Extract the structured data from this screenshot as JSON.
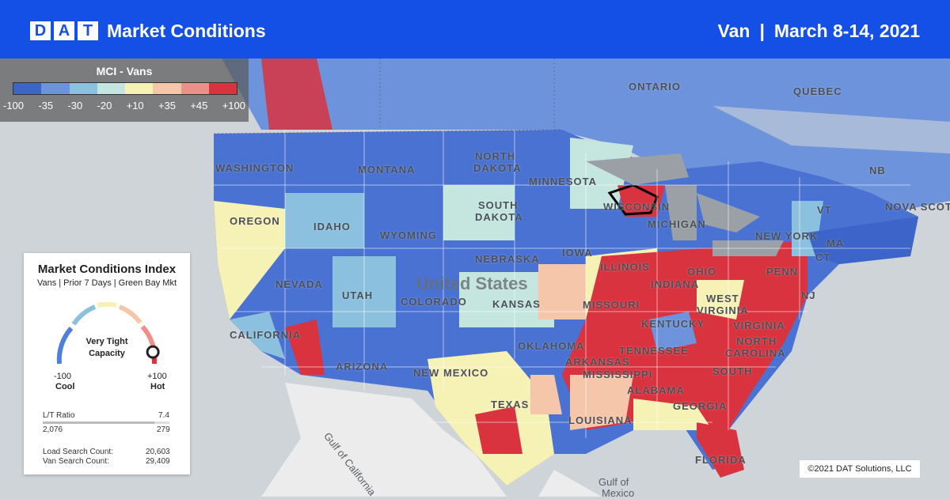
{
  "header": {
    "logo_letters": [
      "D",
      "A",
      "T"
    ],
    "title": "Market Conditions",
    "equipment": "Van",
    "separator": "|",
    "date_range": "March 8-14, 2021"
  },
  "legend": {
    "title": "MCI - Vans",
    "colors": [
      "#3d64c8",
      "#6d93dc",
      "#8cc0df",
      "#c4e6df",
      "#f6f1b5",
      "#f6c6aa",
      "#f08f8a",
      "#d9333f"
    ],
    "ticks": [
      "-100",
      "-35",
      "-30",
      "-20",
      "+10",
      "+35",
      "+45",
      "+100"
    ]
  },
  "map": {
    "region_labels": [
      {
        "text": "WASHINGTON"
      },
      {
        "text": "MONTANA"
      },
      {
        "text": "NORTH"
      },
      {
        "text": "DAKOTA"
      },
      {
        "text": "MINNESOTA"
      },
      {
        "text": "OREGON"
      },
      {
        "text": "IDAHO"
      },
      {
        "text": "SOUTH"
      },
      {
        "text": "DAKOTA"
      },
      {
        "text": "WYOMING"
      },
      {
        "text": "WISCONSIN"
      },
      {
        "text": "MICHIGAN"
      },
      {
        "text": "NEW YORK"
      },
      {
        "text": "NEBRASKA"
      },
      {
        "text": "IOWA"
      },
      {
        "text": "ILLINOIS"
      },
      {
        "text": "INDIANA"
      },
      {
        "text": "OHIO"
      },
      {
        "text": "PENN"
      },
      {
        "text": "NEVADA"
      },
      {
        "text": "UTAH"
      },
      {
        "text": "COLORADO"
      },
      {
        "text": "KANSAS"
      },
      {
        "text": "MISSOURI"
      },
      {
        "text": "KENTUCKY"
      },
      {
        "text": "WEST"
      },
      {
        "text": "VIRGINIA"
      },
      {
        "text": "VIRGINIA"
      },
      {
        "text": "CALIFORNIA"
      },
      {
        "text": "ARIZONA"
      },
      {
        "text": "NEW MEXICO"
      },
      {
        "text": "OKLAHOMA"
      },
      {
        "text": "TENNESSEE"
      },
      {
        "text": "NORTH"
      },
      {
        "text": "CAROLINA"
      },
      {
        "text": "ARKANSAS"
      },
      {
        "text": "SOUTH"
      },
      {
        "text": "MISSISSIPPI"
      },
      {
        "text": "ALABAMA"
      },
      {
        "text": "GEORGIA"
      },
      {
        "text": "TEXAS"
      },
      {
        "text": "LOUISIANA"
      },
      {
        "text": "FLORIDA"
      },
      {
        "text": "ONTARIO"
      },
      {
        "text": "QUEBEC"
      },
      {
        "text": "NB"
      },
      {
        "text": "NOVA SCOTIA"
      },
      {
        "text": "VT"
      },
      {
        "text": "CT"
      },
      {
        "text": "NJ"
      },
      {
        "text": "MA"
      }
    ],
    "country_label": "United States",
    "water_labels": [
      "Gulf of California",
      "Gulf of",
      "Mexico"
    ]
  },
  "card": {
    "title": "Market Conditions Index",
    "subtitle": "Vans | Prior 7 Days | Green Bay Mkt",
    "capacity_line1": "Very Tight",
    "capacity_line2": "Capacity",
    "min": "-100",
    "max": "+100",
    "min_label": "Cool",
    "max_label": "Hot",
    "gauge_level": 0.92,
    "lt_ratio_label": "L/T Ratio",
    "lt_ratio_value": "7.4",
    "loads": "2,076",
    "trucks": "279",
    "ratio_fill": 0.88,
    "load_search_label": "Load Search Count:",
    "load_search_value": "20,603",
    "van_search_label": "Van Search Count:",
    "van_search_value": "29,409"
  },
  "copyright": "©2021 DAT Solutions, LLC"
}
